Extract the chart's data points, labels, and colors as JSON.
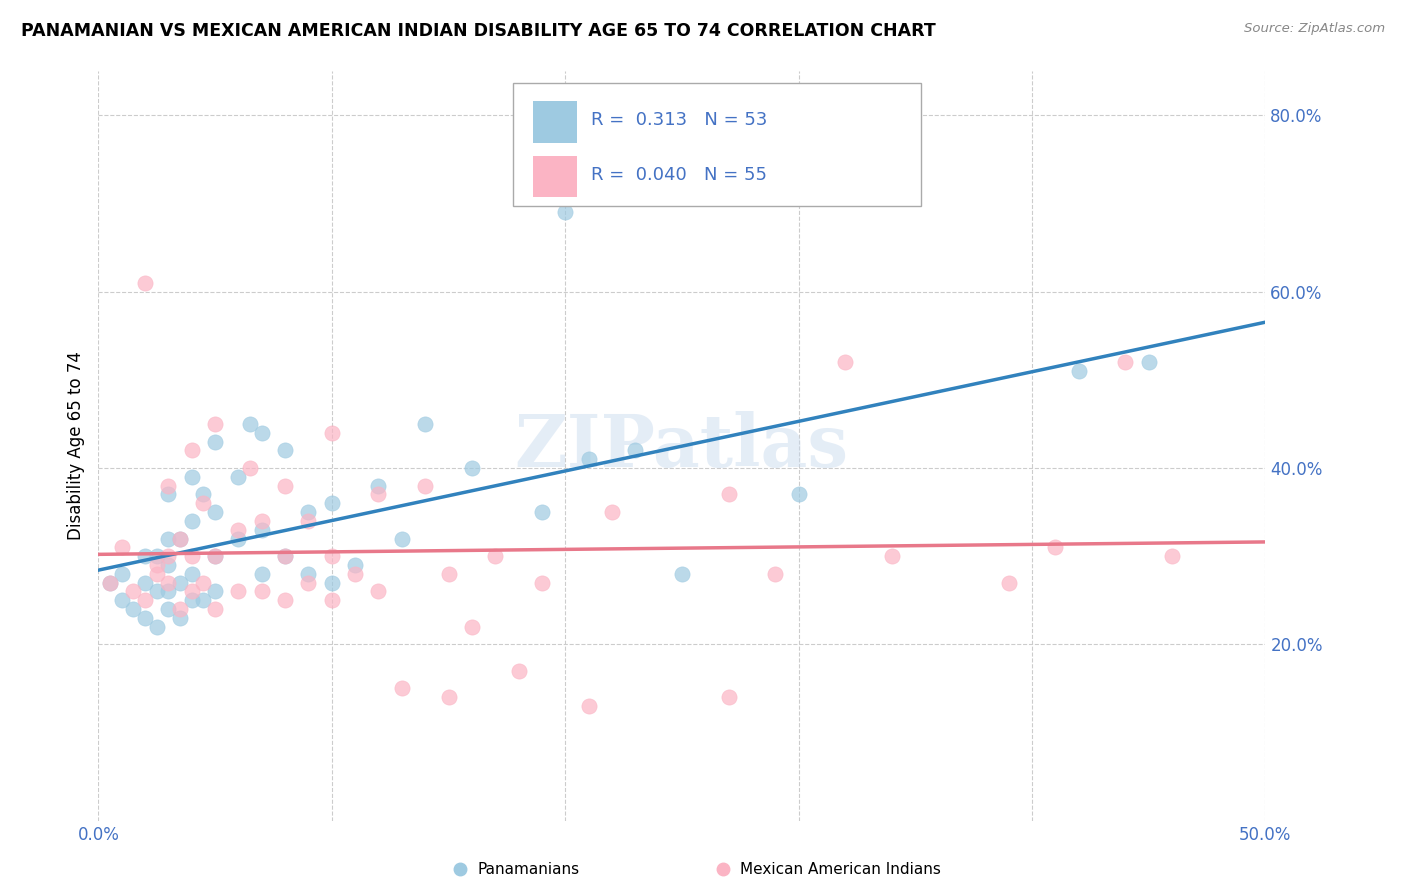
{
  "title": "PANAMANIAN VS MEXICAN AMERICAN INDIAN DISABILITY AGE 65 TO 74 CORRELATION CHART",
  "source": "Source: ZipAtlas.com",
  "ylabel": "Disability Age 65 to 74",
  "xlim": [
    0.0,
    0.5
  ],
  "ylim": [
    0.0,
    0.85
  ],
  "xtick_labels": [
    "0.0%",
    "",
    "",
    "",
    "",
    "50.0%"
  ],
  "xtick_vals": [
    0.0,
    0.1,
    0.2,
    0.3,
    0.4,
    0.5
  ],
  "ytick_labels": [
    "20.0%",
    "40.0%",
    "60.0%",
    "80.0%"
  ],
  "ytick_vals": [
    0.2,
    0.4,
    0.6,
    0.8
  ],
  "R_blue": 0.313,
  "N_blue": 53,
  "R_pink": 0.04,
  "N_pink": 55,
  "blue_color": "#9ecae1",
  "pink_color": "#fbb4c4",
  "blue_line_color": "#3182bd",
  "pink_line_color": "#e8788a",
  "watermark": "ZIPatlas",
  "legend_label_blue": "Panamanians",
  "legend_label_pink": "Mexican American Indians",
  "tick_color": "#4472c4",
  "blue_scatter_x": [
    0.005,
    0.01,
    0.01,
    0.015,
    0.02,
    0.02,
    0.02,
    0.025,
    0.025,
    0.025,
    0.03,
    0.03,
    0.03,
    0.03,
    0.03,
    0.035,
    0.035,
    0.035,
    0.04,
    0.04,
    0.04,
    0.04,
    0.045,
    0.045,
    0.05,
    0.05,
    0.05,
    0.05,
    0.06,
    0.06,
    0.065,
    0.07,
    0.07,
    0.07,
    0.08,
    0.08,
    0.09,
    0.09,
    0.1,
    0.1,
    0.11,
    0.12,
    0.13,
    0.14,
    0.16,
    0.19,
    0.2,
    0.21,
    0.23,
    0.25,
    0.3,
    0.42,
    0.45
  ],
  "blue_scatter_y": [
    0.27,
    0.25,
    0.28,
    0.24,
    0.23,
    0.27,
    0.3,
    0.22,
    0.26,
    0.3,
    0.24,
    0.26,
    0.29,
    0.32,
    0.37,
    0.23,
    0.27,
    0.32,
    0.25,
    0.28,
    0.34,
    0.39,
    0.25,
    0.37,
    0.26,
    0.3,
    0.35,
    0.43,
    0.32,
    0.39,
    0.45,
    0.28,
    0.33,
    0.44,
    0.3,
    0.42,
    0.28,
    0.35,
    0.27,
    0.36,
    0.29,
    0.38,
    0.32,
    0.45,
    0.4,
    0.35,
    0.69,
    0.41,
    0.42,
    0.28,
    0.37,
    0.51,
    0.52
  ],
  "pink_scatter_x": [
    0.005,
    0.01,
    0.015,
    0.02,
    0.02,
    0.025,
    0.025,
    0.03,
    0.03,
    0.03,
    0.035,
    0.035,
    0.04,
    0.04,
    0.04,
    0.045,
    0.045,
    0.05,
    0.05,
    0.05,
    0.06,
    0.06,
    0.065,
    0.07,
    0.07,
    0.08,
    0.08,
    0.08,
    0.09,
    0.09,
    0.1,
    0.1,
    0.1,
    0.11,
    0.12,
    0.12,
    0.13,
    0.14,
    0.15,
    0.15,
    0.16,
    0.17,
    0.18,
    0.19,
    0.21,
    0.22,
    0.27,
    0.27,
    0.29,
    0.32,
    0.34,
    0.39,
    0.41,
    0.44,
    0.46
  ],
  "pink_scatter_y": [
    0.27,
    0.31,
    0.26,
    0.25,
    0.61,
    0.28,
    0.29,
    0.27,
    0.3,
    0.38,
    0.24,
    0.32,
    0.26,
    0.3,
    0.42,
    0.27,
    0.36,
    0.24,
    0.3,
    0.45,
    0.26,
    0.33,
    0.4,
    0.26,
    0.34,
    0.25,
    0.3,
    0.38,
    0.27,
    0.34,
    0.25,
    0.3,
    0.44,
    0.28,
    0.26,
    0.37,
    0.15,
    0.38,
    0.14,
    0.28,
    0.22,
    0.3,
    0.17,
    0.27,
    0.13,
    0.35,
    0.14,
    0.37,
    0.28,
    0.52,
    0.3,
    0.27,
    0.31,
    0.52,
    0.3
  ]
}
